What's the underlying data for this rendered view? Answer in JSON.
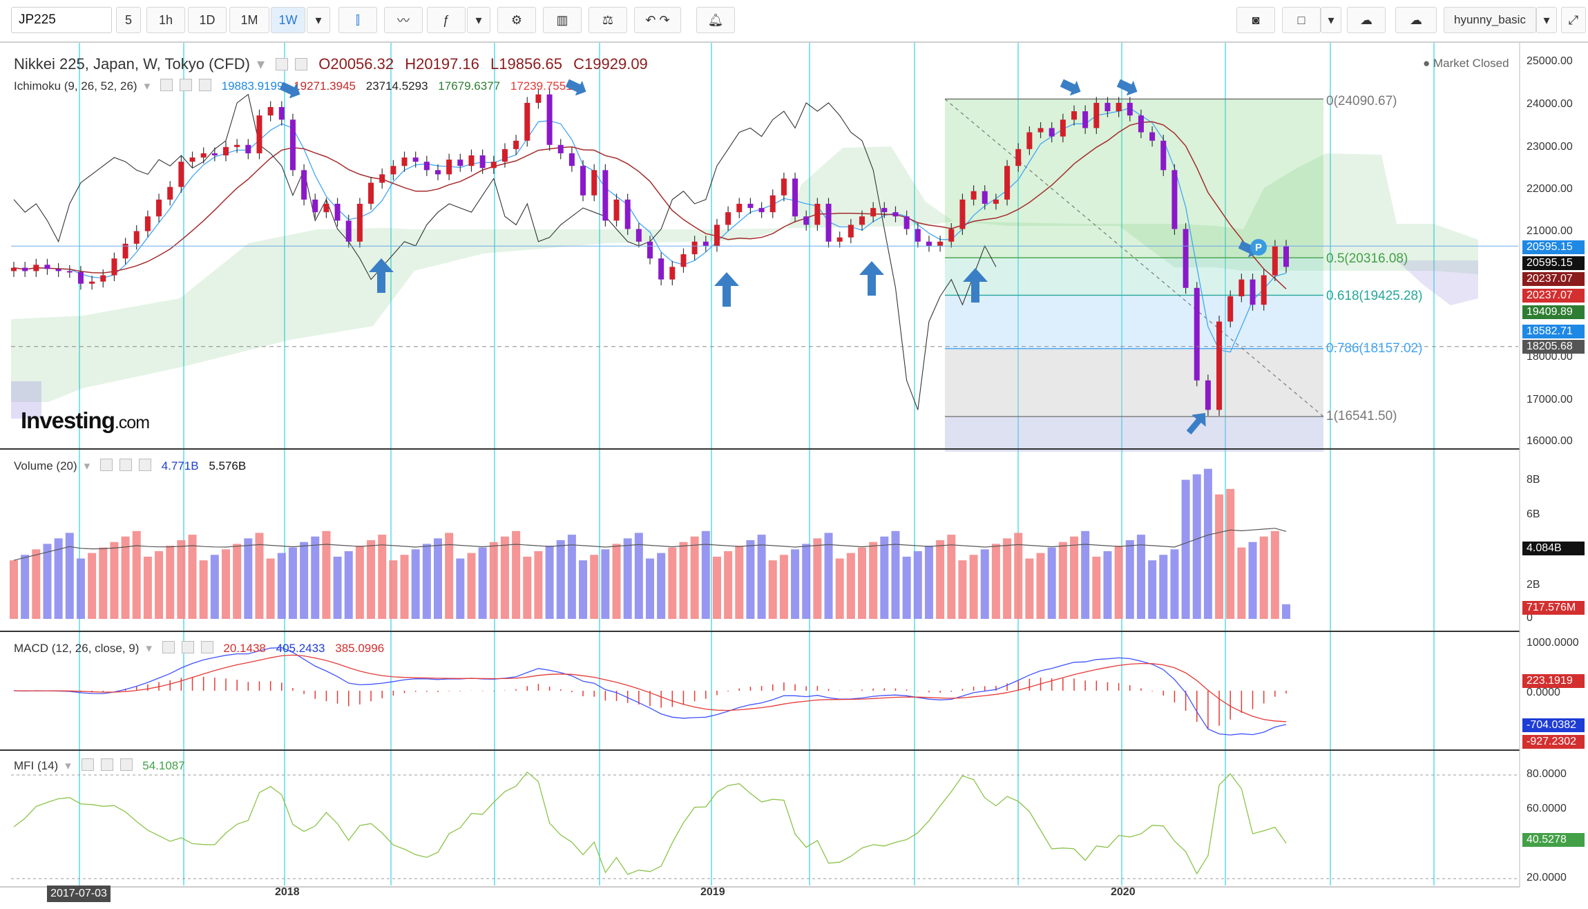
{
  "toolbar": {
    "symbol": "JP225",
    "intervals": [
      "5",
      "1h",
      "1D",
      "1M",
      "1W"
    ],
    "active_interval": "1W",
    "user": "hyunny_basic"
  },
  "main_legend": {
    "title": "Nikkei 225, Japan, W, Tokyo (CFD)",
    "open": "O20056.32",
    "high": "H20197.16",
    "low": "L19856.65",
    "close": "C19929.09",
    "market_status": "Market Closed"
  },
  "ichimoku_legend": {
    "label": "Ichimoku (9, 26, 52, 26)",
    "values": [
      "19883.9199",
      "19271.3945",
      "23714.5293",
      "17679.6377",
      "17239.7551"
    ],
    "colors": [
      "#1e88e5",
      "#c62828",
      "#222222",
      "#2e7d32",
      "#e53935"
    ]
  },
  "volume_legend": {
    "label": "Volume (20)",
    "v1": "4.771B",
    "v2": "5.576B"
  },
  "macd_legend": {
    "label": "MACD (12, 26, close, 9)",
    "v1": "20.1438",
    "v2": "405.2433",
    "v3": "385.0996"
  },
  "mfi_legend": {
    "label": "MFI (14)",
    "v1": "54.1087"
  },
  "logo": {
    "brand": "Investing",
    "suffix": ".com"
  },
  "price_axis": {
    "ticks": [
      "25000.00",
      "24000.00",
      "23000.00",
      "22000.00",
      "21000.00",
      "18000.00",
      "17000.00",
      "16000.00"
    ],
    "tags": [
      {
        "text": "20595.15",
        "color": "#1e88e5"
      },
      {
        "text": "20595.15",
        "color": "#111111"
      },
      {
        "text": "20237.07",
        "color": "#8b1c1c"
      },
      {
        "text": "20237.07",
        "color": "#d32f2f"
      },
      {
        "text": "19409.89",
        "color": "#2e7d32"
      },
      {
        "text": "18582.71",
        "color": "#1e88e5"
      },
      {
        "text": "18205.68",
        "color": "#555555"
      }
    ]
  },
  "volume_axis": {
    "ticks": [
      "8B",
      "6B",
      "2B",
      "0"
    ],
    "tags": [
      {
        "text": "4.084B",
        "color": "#111111"
      },
      {
        "text": "717.576M",
        "color": "#d32f2f"
      }
    ]
  },
  "macd_axis": {
    "ticks": [
      "1000.0000",
      "0.0000"
    ],
    "tags": [
      {
        "text": "223.1919",
        "color": "#d32f2f"
      },
      {
        "text": "-704.0382",
        "color": "#1e3cd6"
      },
      {
        "text": "-927.2302",
        "color": "#d32f2f"
      }
    ]
  },
  "mfi_axis": {
    "ticks": [
      "80.0000",
      "60.0000",
      "20.0000"
    ],
    "tags": [
      {
        "text": "40.5278",
        "color": "#43a047"
      }
    ]
  },
  "fibonacci": [
    {
      "label": "0(24090.67)",
      "color": "#777777"
    },
    {
      "label": "0.5(20316.08)",
      "color": "#43a047"
    },
    {
      "label": "0.618(19425.28)",
      "color": "#26a69a"
    },
    {
      "label": "0.786(18157.02)",
      "color": "#42a5f5"
    },
    {
      "label": "1(16541.50)",
      "color": "#777777"
    }
  ],
  "time_axis": {
    "cursor_date": "2017-07-03",
    "labels": [
      "2018",
      "2019",
      "2020"
    ]
  },
  "chart_data": {
    "type": "candlestick",
    "symbol": "JP225",
    "interval": "W",
    "price_range": [
      16000,
      25000
    ],
    "close_approx": [
      20080,
      20000,
      20150,
      20050,
      20000,
      19980,
      19700,
      19750,
      19900,
      20300,
      20650,
      20950,
      21300,
      21700,
      22000,
      22600,
      22700,
      22800,
      22750,
      22950,
      23000,
      22800,
      23700,
      23900,
      23600,
      22400,
      21700,
      21400,
      21600,
      21200,
      20700,
      21600,
      22100,
      22300,
      22500,
      22700,
      22600,
      22400,
      22300,
      22650,
      22500,
      22750,
      22450,
      22600,
      22900,
      23100,
      24000,
      24200,
      23000,
      22800,
      22500,
      21800,
      22400,
      21200,
      21700,
      21000,
      20700,
      20300,
      19800,
      20100,
      20400,
      20700,
      20600,
      21100,
      21400,
      21600,
      21500,
      21400,
      21800,
      22200,
      21300,
      21100,
      21600,
      20700,
      20800,
      21100,
      21300,
      21500,
      21400,
      21300,
      21000,
      20700,
      20600,
      20700,
      21000,
      21700,
      21900,
      21600,
      21700,
      22500,
      22900,
      23300,
      23400,
      23200,
      23600,
      23800,
      23400,
      24000,
      23800,
      24000,
      23700,
      23300,
      23100,
      22400,
      21000,
      19600,
      17400,
      16700,
      18800,
      19400,
      19800,
      19200,
      19900,
      20600,
      20100
    ],
    "volume_range_B": [
      0,
      8
    ],
    "volume_last": "717.576M",
    "volume_ma": "4.084B",
    "macd_last": {
      "macd": -704.0382,
      "signal": -927.2302,
      "histogram": 223.1919
    },
    "mfi_last": 40.5278,
    "fib_levels": [
      [
        0,
        24090.67
      ],
      [
        0.5,
        20316.08
      ],
      [
        0.618,
        19425.28
      ],
      [
        0.786,
        18157.02
      ],
      [
        1,
        16541.5
      ]
    ]
  }
}
